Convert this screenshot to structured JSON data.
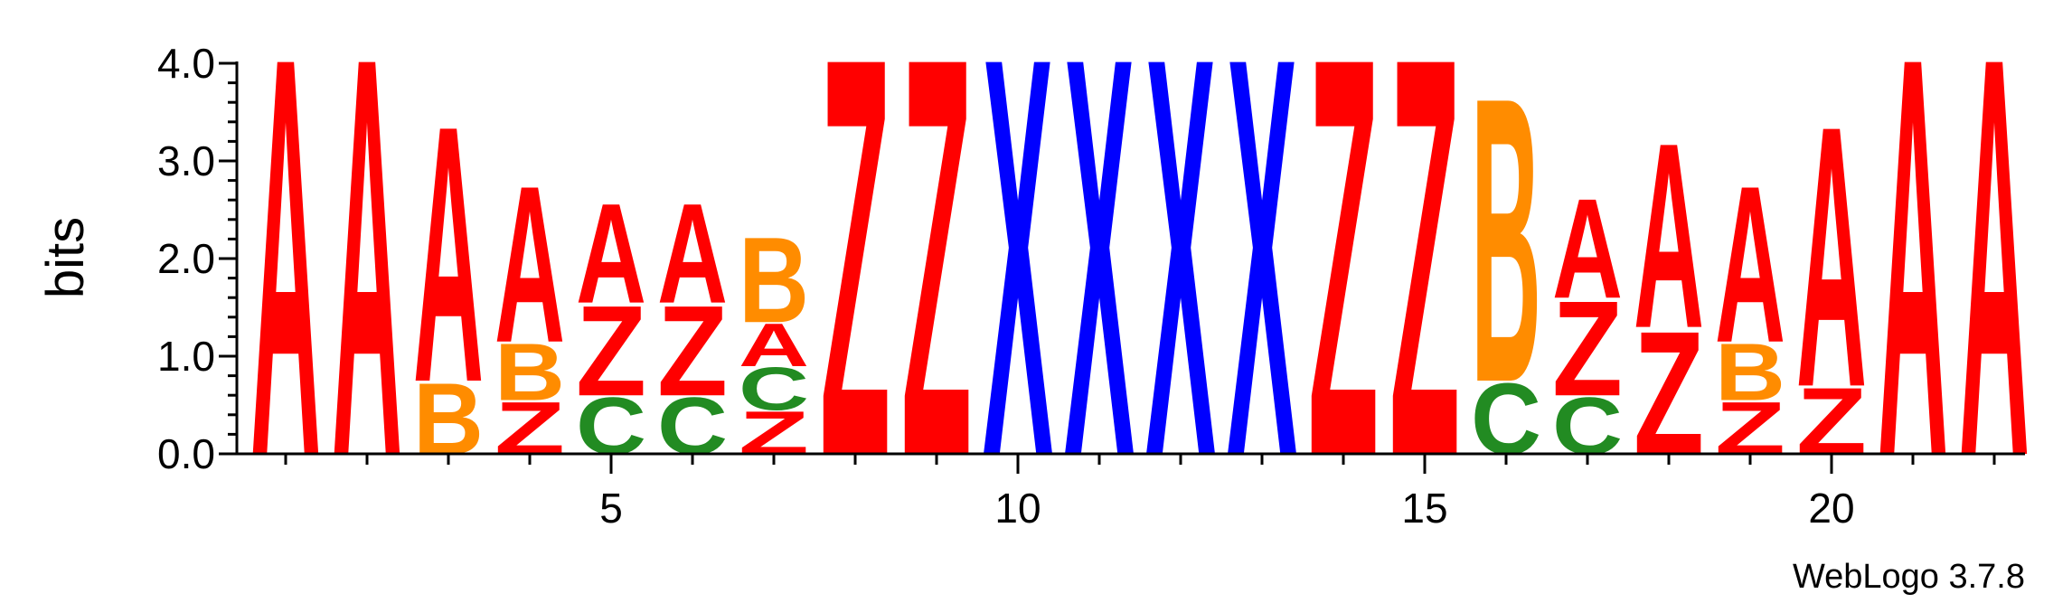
{
  "chart_data": {
    "type": "sequence-logo",
    "ylabel": "bits",
    "ylim": [
      0,
      4.0
    ],
    "y_ticks": [
      "0.0",
      "1.0",
      "2.0",
      "3.0",
      "4.0"
    ],
    "x_ticks": [
      "5",
      "10",
      "15",
      "20"
    ],
    "x_tick_values": [
      5,
      10,
      15,
      20
    ],
    "footer": "WebLogo 3.7.8",
    "colors": {
      "A": "#ff0000",
      "Z": "#ff0000",
      "X": "#0000ff",
      "B": "#ff8c00",
      "C": "#228b22"
    },
    "positions": [
      {
        "pos": 1,
        "stack": [
          {
            "letter": "A",
            "bits": 4.2
          }
        ]
      },
      {
        "pos": 2,
        "stack": [
          {
            "letter": "A",
            "bits": 4.2
          }
        ]
      },
      {
        "pos": 3,
        "stack": [
          {
            "letter": "B",
            "bits": 0.75
          },
          {
            "letter": "A",
            "bits": 2.7
          }
        ]
      },
      {
        "pos": 4,
        "stack": [
          {
            "letter": "Z",
            "bits": 0.55
          },
          {
            "letter": "B",
            "bits": 0.6
          },
          {
            "letter": "A",
            "bits": 1.65
          }
        ]
      },
      {
        "pos": 5,
        "stack": [
          {
            "letter": "C",
            "bits": 0.6
          },
          {
            "letter": "Z",
            "bits": 0.95
          },
          {
            "letter": "A",
            "bits": 1.05
          }
        ]
      },
      {
        "pos": 6,
        "stack": [
          {
            "letter": "C",
            "bits": 0.6
          },
          {
            "letter": "Z",
            "bits": 0.95
          },
          {
            "letter": "A",
            "bits": 1.05
          }
        ]
      },
      {
        "pos": 7,
        "stack": [
          {
            "letter": "Z",
            "bits": 0.45
          },
          {
            "letter": "C",
            "bits": 0.45
          },
          {
            "letter": "A",
            "bits": 0.45
          },
          {
            "letter": "B",
            "bits": 0.9
          }
        ]
      },
      {
        "pos": 8,
        "stack": [
          {
            "letter": "Z",
            "bits": 4.2
          }
        ]
      },
      {
        "pos": 9,
        "stack": [
          {
            "letter": "Z",
            "bits": 4.2
          }
        ]
      },
      {
        "pos": 10,
        "stack": [
          {
            "letter": "X",
            "bits": 4.2
          }
        ]
      },
      {
        "pos": 11,
        "stack": [
          {
            "letter": "X",
            "bits": 4.2
          }
        ]
      },
      {
        "pos": 12,
        "stack": [
          {
            "letter": "X",
            "bits": 4.2
          }
        ]
      },
      {
        "pos": 13,
        "stack": [
          {
            "letter": "X",
            "bits": 4.2
          }
        ]
      },
      {
        "pos": 14,
        "stack": [
          {
            "letter": "Z",
            "bits": 4.2
          }
        ]
      },
      {
        "pos": 15,
        "stack": [
          {
            "letter": "Z",
            "bits": 4.2
          }
        ]
      },
      {
        "pos": 16,
        "stack": [
          {
            "letter": "C",
            "bits": 0.75
          },
          {
            "letter": "B",
            "bits": 3.0
          }
        ]
      },
      {
        "pos": 17,
        "stack": [
          {
            "letter": "C",
            "bits": 0.6
          },
          {
            "letter": "Z",
            "bits": 1.0
          },
          {
            "letter": "A",
            "bits": 1.05
          }
        ]
      },
      {
        "pos": 18,
        "stack": [
          {
            "letter": "Z",
            "bits": 1.3
          },
          {
            "letter": "A",
            "bits": 1.95
          }
        ]
      },
      {
        "pos": 19,
        "stack": [
          {
            "letter": "Z",
            "bits": 0.55
          },
          {
            "letter": "B",
            "bits": 0.6
          },
          {
            "letter": "A",
            "bits": 1.65
          }
        ]
      },
      {
        "pos": 20,
        "stack": [
          {
            "letter": "Z",
            "bits": 0.7
          },
          {
            "letter": "A",
            "bits": 2.75
          }
        ]
      },
      {
        "pos": 21,
        "stack": [
          {
            "letter": "A",
            "bits": 4.2
          }
        ]
      },
      {
        "pos": 22,
        "stack": [
          {
            "letter": "A",
            "bits": 4.2
          }
        ]
      }
    ]
  }
}
